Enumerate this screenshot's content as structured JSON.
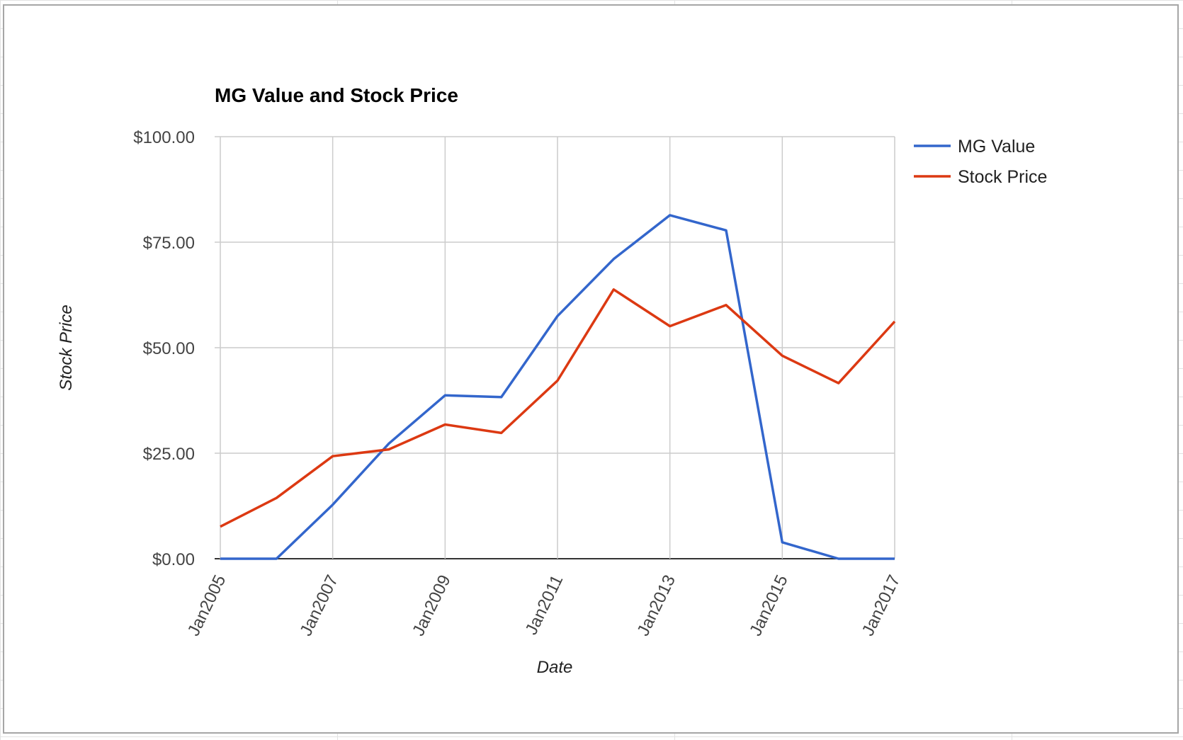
{
  "chart_data": {
    "type": "line",
    "title": "MG Value and Stock Price",
    "xlabel": "Date",
    "ylabel": "Stock Price",
    "x": [
      "2005-01",
      "2006-01",
      "2007-01",
      "2008-01",
      "2009-01",
      "2010-01",
      "2011-01",
      "2012-01",
      "2013-01",
      "2014-01",
      "2015-01",
      "2016-01",
      "2017-01"
    ],
    "x_ticks": [
      "Jan2005",
      "Jan2007",
      "Jan2009",
      "Jan2011",
      "Jan2013",
      "Jan2015",
      "Jan2017"
    ],
    "y_ticks": [
      "$0.00",
      "$25.00",
      "$50.00",
      "$75.00",
      "$100.00"
    ],
    "ylim": [
      0,
      100
    ],
    "grid": true,
    "legend": "right",
    "series": [
      {
        "name": "MG Value",
        "color": "#3366cc",
        "values": [
          0,
          0,
          12.8,
          27.3,
          38.7,
          38.3,
          57.5,
          71.0,
          81.4,
          77.8,
          3.9,
          0,
          0
        ]
      },
      {
        "name": "Stock Price",
        "color": "#dc3912",
        "values": [
          7.6,
          14.4,
          24.3,
          25.9,
          31.8,
          29.8,
          42.2,
          63.8,
          55.1,
          60.1,
          48.1,
          41.6,
          56.2
        ]
      }
    ]
  }
}
